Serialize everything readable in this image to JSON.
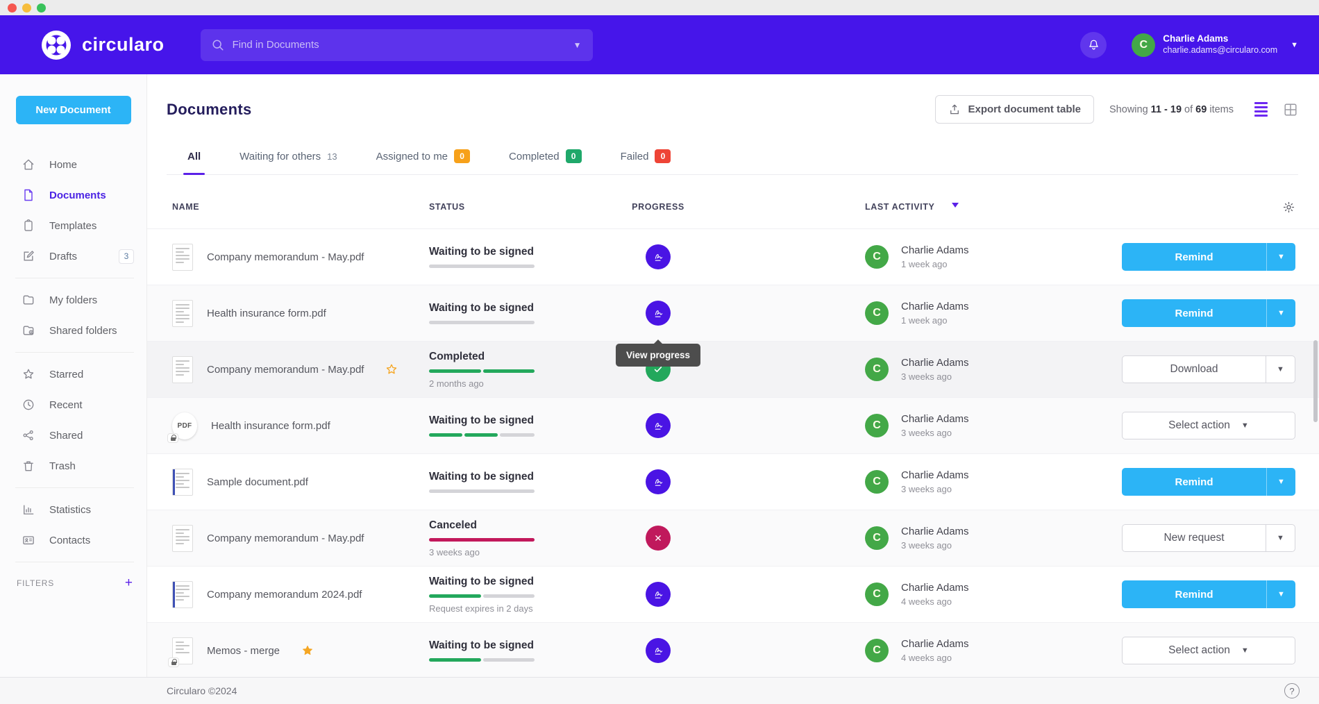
{
  "window": {
    "type": "mac-titlebar"
  },
  "colors": {
    "accent_purple": "#4615ea",
    "action_blue": "#2cb4f6",
    "underline_purple": "#5b21e8",
    "avatar_green": "#43a847"
  },
  "palette": {
    "green": "#23a85c",
    "gray": "#d4d4d8",
    "red": "#c2185b"
  },
  "header": {
    "brand": "circularo",
    "search_placeholder": "Find in Documents",
    "user": {
      "initial": "C",
      "name": "Charlie Adams",
      "email": "charlie.adams@circularo.com"
    }
  },
  "sidebar": {
    "new_document": "New Document",
    "items": [
      {
        "label": "Home"
      },
      {
        "label": "Documents",
        "active": true
      },
      {
        "label": "Templates"
      },
      {
        "label": "Drafts",
        "badge": "3"
      },
      {
        "label": "My folders"
      },
      {
        "label": "Shared folders"
      },
      {
        "label": "Starred"
      },
      {
        "label": "Recent"
      },
      {
        "label": "Shared"
      },
      {
        "label": "Trash"
      },
      {
        "label": "Statistics"
      },
      {
        "label": "Contacts"
      }
    ],
    "filters_label": "FILTERS",
    "filters_add": "+"
  },
  "main": {
    "title": "Documents",
    "export_label": "Export document table",
    "showing": {
      "prefix": "Showing",
      "range": "11 - 19",
      "of": "of",
      "total": "69",
      "suffix": "items"
    },
    "tabs": [
      {
        "label": "All",
        "active": true
      },
      {
        "label": "Waiting for others",
        "count": "13"
      },
      {
        "label": "Assigned to me",
        "count": "0"
      },
      {
        "label": "Completed",
        "count": "0"
      },
      {
        "label": "Failed",
        "count": "0"
      }
    ]
  },
  "table": {
    "columns": {
      "name": "NAME",
      "status": "STATUS",
      "progress": "PROGRESS",
      "activity": "LAST ACTIVITY"
    },
    "rows": [
      {
        "name": "Company memorandum - May.pdf",
        "status": "Waiting to be signed",
        "sub": "",
        "progress": [
          {
            "color": "gray",
            "pct": 100
          }
        ],
        "activity": {
          "initial": "C",
          "user": "Charlie Adams",
          "time": "1 week ago"
        },
        "action": {
          "label": "Remind"
        }
      },
      {
        "name": "Health insurance form.pdf",
        "status": "Waiting to be signed",
        "sub": "",
        "progress": [
          {
            "color": "gray",
            "pct": 100
          }
        ],
        "activity": {
          "initial": "C",
          "user": "Charlie Adams",
          "time": "1 week ago"
        },
        "action": {
          "label": "Remind"
        },
        "tooltip": "View progress"
      },
      {
        "name": "Company memorandum - May.pdf",
        "status": "Completed",
        "sub": "2 months ago",
        "progress": [
          {
            "color": "green",
            "pct": 50
          },
          {
            "color": "green",
            "pct": 50
          }
        ],
        "activity": {
          "initial": "C",
          "user": "Charlie Adams",
          "time": "3 weeks ago"
        },
        "action": {
          "label": "Download"
        }
      },
      {
        "name": "Health insurance form.pdf",
        "status": "Waiting to be signed",
        "sub": "",
        "progress": [
          {
            "color": "green",
            "pct": 33
          },
          {
            "color": "green",
            "pct": 33
          },
          {
            "color": "gray",
            "pct": 34
          }
        ],
        "activity": {
          "initial": "C",
          "user": "Charlie Adams",
          "time": "3 weeks ago"
        },
        "action": {
          "label": "Select action"
        }
      },
      {
        "name": "Sample document.pdf",
        "status": "Waiting to be signed",
        "sub": "",
        "progress": [
          {
            "color": "gray",
            "pct": 100
          }
        ],
        "activity": {
          "initial": "C",
          "user": "Charlie Adams",
          "time": "3 weeks ago"
        },
        "action": {
          "label": "Remind"
        }
      },
      {
        "name": "Company memorandum - May.pdf",
        "status": "Canceled",
        "sub": "3 weeks ago",
        "progress": [
          {
            "color": "red",
            "pct": 100
          }
        ],
        "activity": {
          "initial": "C",
          "user": "Charlie Adams",
          "time": "3 weeks ago"
        },
        "action": {
          "label": "New request"
        }
      },
      {
        "name": "Company memorandum 2024.pdf",
        "status": "Waiting to be signed",
        "sub": "Request expires in 2 days",
        "progress": [
          {
            "color": "green",
            "pct": 50
          },
          {
            "color": "gray",
            "pct": 50
          }
        ],
        "activity": {
          "initial": "C",
          "user": "Charlie Adams",
          "time": "4 weeks ago"
        },
        "action": {
          "label": "Remind"
        }
      },
      {
        "name": "Memos - merge",
        "status": "Waiting to be signed",
        "sub": "",
        "progress": [
          {
            "color": "green",
            "pct": 50
          },
          {
            "color": "gray",
            "pct": 50
          }
        ],
        "activity": {
          "initial": "C",
          "user": "Charlie Adams",
          "time": "4 weeks ago"
        },
        "action": {
          "label": "Select action"
        }
      }
    ]
  },
  "footer": {
    "copyright": "Circularo ©2024",
    "help": "?"
  }
}
